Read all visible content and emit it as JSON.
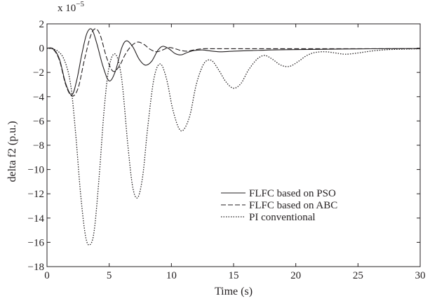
{
  "chart_data": {
    "type": "line",
    "xlabel": "Time (s)",
    "ylabel": "delta f2 (p.u.)",
    "y_multiplier_label": "x 10",
    "y_multiplier_exponent": "−5",
    "xlim": [
      0,
      30
    ],
    "ylim": [
      -18,
      2
    ],
    "xticks": [
      0,
      5,
      10,
      15,
      20,
      25,
      30
    ],
    "yticks": [
      2,
      0,
      -2,
      -4,
      -6,
      -8,
      -10,
      -12,
      -14,
      -16,
      -18
    ],
    "ytick_labels": [
      "2",
      "0",
      "−2",
      "−4",
      "−6",
      "−8",
      "−10",
      "−12",
      "−14",
      "−16",
      "−18"
    ],
    "grid": false,
    "legend_position": "lower-right",
    "series": [
      {
        "name": "FLFC based on PSO",
        "style": "solid",
        "color": "#231f20",
        "x": [
          0,
          0.5,
          1.0,
          1.5,
          2.0,
          2.4,
          2.8,
          3.2,
          3.6,
          4.0,
          4.5,
          5.0,
          5.5,
          6.0,
          6.4,
          6.9,
          7.4,
          7.9,
          8.4,
          8.9,
          9.3,
          9.8,
          10.3,
          10.8,
          11.3,
          11.8,
          12.5,
          13.3,
          14.0,
          15.0,
          16.5,
          18.0,
          20.0,
          22.0,
          25.0,
          28.0,
          30.0
        ],
        "y": [
          0,
          -0.05,
          -0.9,
          -2.9,
          -3.85,
          -2.6,
          -0.5,
          1.2,
          1.55,
          0.4,
          -1.5,
          -2.7,
          -1.9,
          0.0,
          0.6,
          0.1,
          -0.9,
          -1.4,
          -1.1,
          -0.2,
          0.15,
          -0.05,
          -0.45,
          -0.55,
          -0.35,
          -0.2,
          -0.15,
          -0.25,
          -0.3,
          -0.25,
          -0.2,
          -0.15,
          -0.12,
          -0.1,
          -0.06,
          -0.04,
          -0.03
        ]
      },
      {
        "name": "FLFC based on ABC",
        "style": "dashed",
        "color": "#231f20",
        "x": [
          0,
          0.5,
          1.0,
          1.5,
          2.0,
          2.5,
          3.0,
          3.5,
          3.9,
          4.3,
          4.8,
          5.3,
          5.8,
          6.3,
          6.8,
          7.3,
          7.8,
          8.3,
          8.8,
          9.3,
          9.8,
          10.3,
          10.8,
          11.3,
          11.8,
          12.5,
          13.5,
          15.0,
          17.0,
          20.0,
          25.0,
          30.0
        ],
        "y": [
          0,
          -0.1,
          -1.0,
          -3.0,
          -3.95,
          -3.3,
          -1.0,
          1.0,
          1.6,
          1.0,
          -0.8,
          -1.9,
          -1.5,
          -0.5,
          0.2,
          0.5,
          0.3,
          -0.1,
          -0.3,
          -0.15,
          0.05,
          -0.05,
          -0.2,
          -0.25,
          -0.15,
          -0.05,
          -0.05,
          -0.05,
          -0.05,
          -0.05,
          -0.05,
          -0.05
        ]
      },
      {
        "name": "PI conventional",
        "style": "dotted",
        "color": "#231f20",
        "x": [
          0,
          0.8,
          1.4,
          1.9,
          2.3,
          2.7,
          3.1,
          3.45,
          3.8,
          4.2,
          4.6,
          5.0,
          5.5,
          6.0,
          6.5,
          6.9,
          7.3,
          7.7,
          8.1,
          8.6,
          9.1,
          9.6,
          10.1,
          10.6,
          11.0,
          11.5,
          12.0,
          12.6,
          13.2,
          13.8,
          14.4,
          15.0,
          15.6,
          16.2,
          16.9,
          17.5,
          18.1,
          18.8,
          19.5,
          20.2,
          20.9,
          21.6,
          22.4,
          23.2,
          24.0,
          25.0,
          26.0,
          27.0,
          28.0,
          30.0
        ],
        "y": [
          0,
          -0.2,
          -1.0,
          -3.0,
          -7.0,
          -12.0,
          -15.5,
          -16.2,
          -15.0,
          -10.5,
          -5.0,
          -1.5,
          -0.5,
          -2.5,
          -8.0,
          -11.5,
          -12.3,
          -10.5,
          -6.5,
          -2.5,
          -1.3,
          -2.5,
          -5.0,
          -6.6,
          -6.7,
          -5.5,
          -3.0,
          -1.3,
          -1.0,
          -1.8,
          -2.8,
          -3.3,
          -2.9,
          -1.8,
          -0.9,
          -0.6,
          -0.9,
          -1.4,
          -1.5,
          -1.1,
          -0.6,
          -0.35,
          -0.3,
          -0.4,
          -0.5,
          -0.4,
          -0.25,
          -0.15,
          -0.1,
          -0.05
        ]
      }
    ]
  }
}
